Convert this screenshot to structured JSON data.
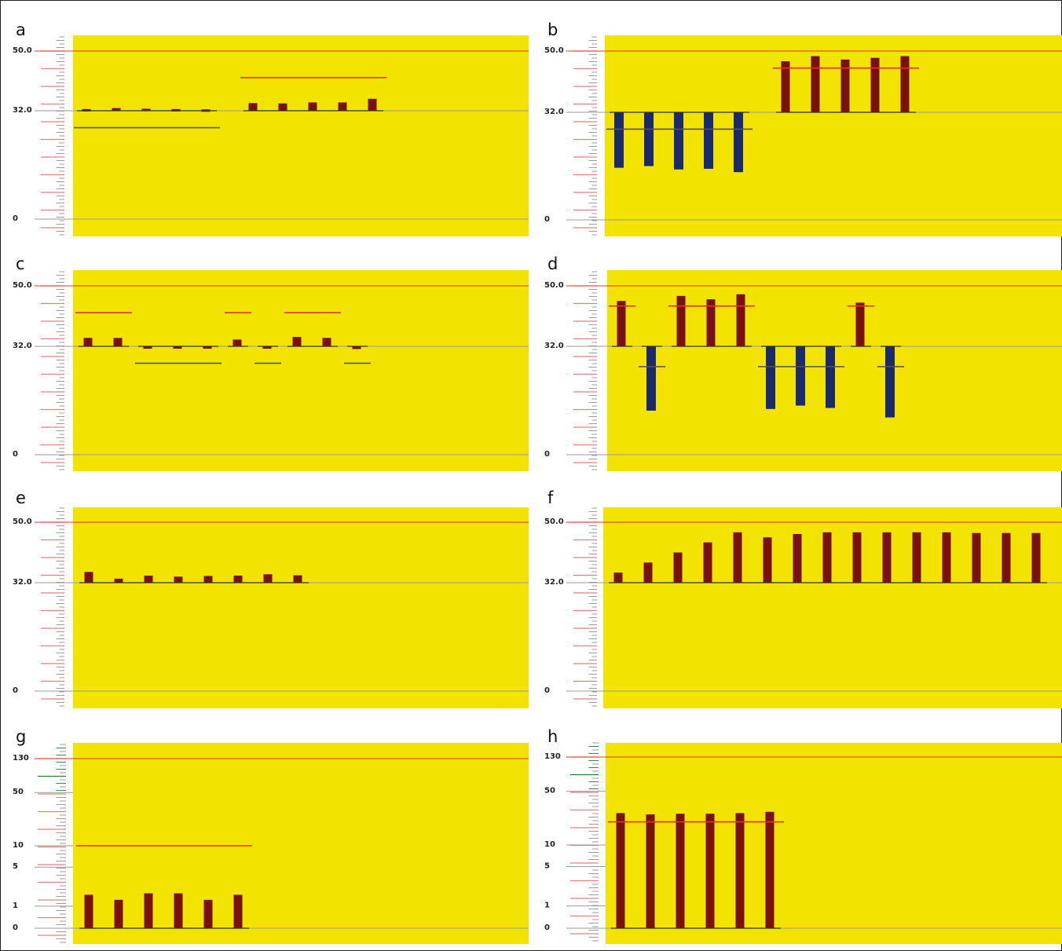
{
  "colors": {
    "plot_bg": "#f2e400",
    "red_line": "#e8302a",
    "gray_line": "#9a9a9a",
    "dark_line": "#555555",
    "bar_red": "#7a1010",
    "bar_blue": "#1a2a6e",
    "tick_red": "#e08080",
    "tick_gray": "#909090",
    "tick_green": "#2a7a3a"
  },
  "chart_data": [
    {
      "panel": "a",
      "type": "bar",
      "scale": "linear",
      "yticks": [
        "50.0",
        "32.0",
        "0"
      ],
      "ylim": [
        0,
        50
      ],
      "groups": [
        {
          "baseline": 32,
          "threshold": 27,
          "threshold_color": "dark",
          "color": "red",
          "values": [
            32.5,
            32.8,
            32.6,
            32.5,
            32.4
          ]
        },
        {
          "baseline": 32,
          "threshold": 42,
          "threshold_color": "red",
          "color": "red",
          "values": [
            34.3,
            34.2,
            34.5,
            34.5,
            35.6
          ]
        }
      ]
    },
    {
      "panel": "b",
      "type": "bar",
      "scale": "linear",
      "yticks": [
        "50.0",
        "32.0",
        "0"
      ],
      "ylim": [
        0,
        50
      ],
      "groups": [
        {
          "baseline": 32,
          "threshold": 27,
          "threshold_color": "dark",
          "color": "blue",
          "values": [
            15.5,
            16.0,
            15.0,
            15.2,
            14.2
          ]
        },
        {
          "baseline": 32,
          "threshold": 45,
          "threshold_color": "red",
          "color": "red",
          "values": [
            47.0,
            48.5,
            47.5,
            48.0,
            48.5
          ]
        }
      ]
    },
    {
      "panel": "c",
      "type": "bar",
      "scale": "linear",
      "yticks": [
        "50.0",
        "32.0",
        "0"
      ],
      "ylim": [
        0,
        50
      ],
      "groups": [
        {
          "baseline": 32,
          "threshold": 42,
          "threshold_color": "red",
          "color": "red",
          "values": [
            34.5,
            34.5
          ]
        },
        {
          "baseline": 32,
          "threshold": 27,
          "threshold_color": "dark",
          "color": "red",
          "values": [
            31.5,
            31.5,
            31.8
          ]
        },
        {
          "baseline": 32,
          "threshold": 42,
          "threshold_color": "red",
          "color": "red",
          "values": [
            34.0
          ]
        },
        {
          "baseline": 32,
          "threshold": 27,
          "threshold_color": "dark",
          "color": "red",
          "values": [
            31.3
          ]
        },
        {
          "baseline": 32,
          "threshold": 42,
          "threshold_color": "red",
          "color": "red",
          "values": [
            34.8,
            34.5
          ]
        },
        {
          "baseline": 32,
          "threshold": 27,
          "threshold_color": "dark",
          "color": "red",
          "values": [
            31.2
          ]
        }
      ]
    },
    {
      "panel": "d",
      "type": "bar",
      "scale": "linear",
      "yticks": [
        "50.0",
        "32.0",
        "0"
      ],
      "ylim": [
        0,
        50
      ],
      "groups": [
        {
          "baseline": 32,
          "threshold": 44,
          "threshold_color": "red",
          "color": "red",
          "values": [
            45.5
          ]
        },
        {
          "baseline": 32,
          "threshold": 26,
          "threshold_color": "dark",
          "color": "blue",
          "values": [
            13.0
          ]
        },
        {
          "baseline": 32,
          "threshold": 44,
          "threshold_color": "red",
          "color": "red",
          "values": [
            47.0,
            46.0,
            47.5
          ]
        },
        {
          "baseline": 32,
          "threshold": 26,
          "threshold_color": "dark",
          "color": "blue",
          "values": [
            13.5,
            14.5,
            13.8
          ]
        },
        {
          "baseline": 32,
          "threshold": 44,
          "threshold_color": "red",
          "color": "red",
          "values": [
            45.0
          ]
        },
        {
          "baseline": 32,
          "threshold": 26,
          "threshold_color": "dark",
          "color": "blue",
          "values": [
            11.0
          ]
        }
      ]
    },
    {
      "panel": "e",
      "type": "bar",
      "scale": "linear",
      "yticks": [
        "50.0",
        "32.0",
        "0"
      ],
      "ylim": [
        0,
        50
      ],
      "groups": [
        {
          "baseline": 32,
          "color": "red",
          "values": [
            35.2,
            33.2,
            34.1,
            33.8,
            34.0,
            34.1,
            34.5,
            34.2
          ]
        }
      ]
    },
    {
      "panel": "f",
      "type": "bar",
      "scale": "linear",
      "yticks": [
        "50.0",
        "32.0",
        "0"
      ],
      "ylim": [
        0,
        50
      ],
      "groups": [
        {
          "baseline": 32,
          "color": "red",
          "values": [
            35.0,
            38.0,
            41.0,
            44.0,
            47.0,
            45.5,
            46.5,
            47.0,
            47.0,
            47.0,
            47.0,
            47.0,
            46.8,
            46.8,
            46.8
          ]
        }
      ]
    },
    {
      "panel": "g",
      "type": "bar",
      "scale": "log",
      "yticks": [
        "130",
        "50",
        "10",
        "5",
        "1",
        "0"
      ],
      "ylim": [
        0,
        130
      ],
      "groups": [
        {
          "baseline": 0,
          "threshold": 10,
          "threshold_color": "red",
          "color": "red",
          "values": [
            1.6,
            1.3,
            1.7,
            1.7,
            1.3,
            1.6
          ]
        }
      ]
    },
    {
      "panel": "h",
      "type": "bar",
      "scale": "log",
      "yticks": [
        "130",
        "50",
        "10",
        "5",
        "1",
        "0"
      ],
      "ylim": [
        0,
        130
      ],
      "groups": [
        {
          "baseline": 0,
          "threshold": 20,
          "threshold_color": "red",
          "color": "red",
          "values": [
            26,
            25,
            25.5,
            25.5,
            26,
            27
          ]
        }
      ]
    }
  ]
}
